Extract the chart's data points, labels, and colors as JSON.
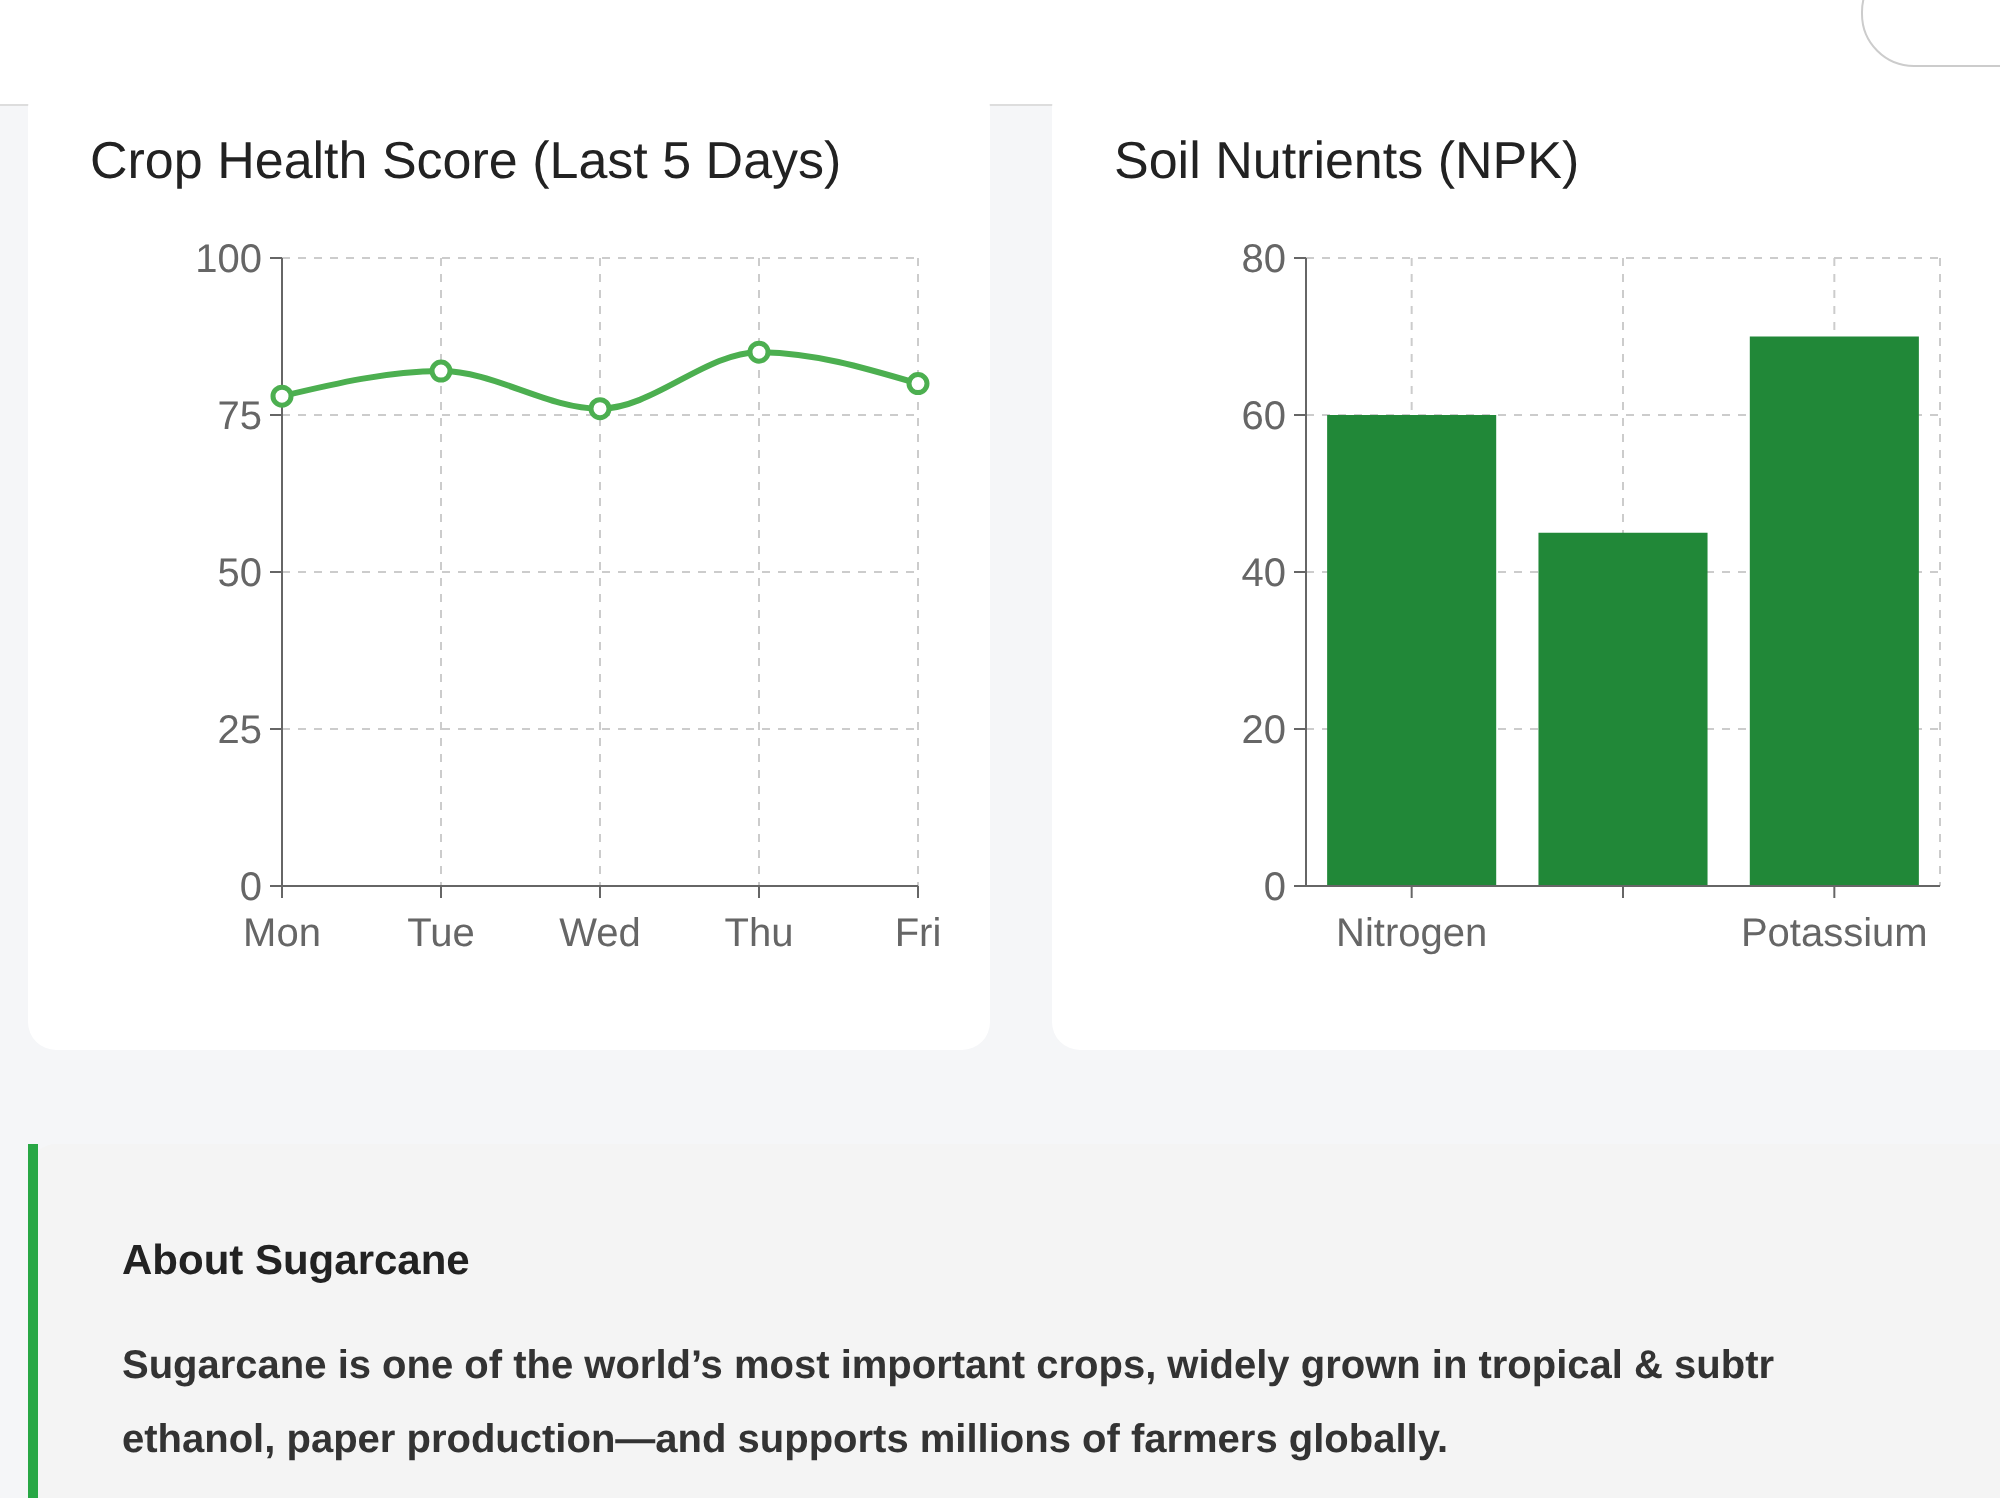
{
  "chart_data": [
    {
      "type": "line",
      "title": "Crop Health Score (Last 5 Days)",
      "categories": [
        "Mon",
        "Tue",
        "Wed",
        "Thu",
        "Fri"
      ],
      "values": [
        78,
        82,
        76,
        85,
        80
      ],
      "color": "#4caf50",
      "ylim": [
        0,
        100
      ],
      "yticks": [
        0,
        25,
        50,
        75,
        100
      ],
      "grid": true,
      "marker": "circle"
    },
    {
      "type": "bar",
      "title": "Soil Nutrients (NPK)",
      "categories": [
        "Nitrogen",
        null,
        "Potassium"
      ],
      "values": [
        60,
        45,
        70
      ],
      "color": "#218838",
      "ylim": [
        0,
        80
      ],
      "yticks": [
        0,
        20,
        40,
        60,
        80
      ],
      "grid": true
    },
    {
      "type": "other",
      "title": "About Sugarcane",
      "annotations": [
        "Sugarcane is one of the world’s most important crops, widely grown in tropical & subtr",
        "ethanol, paper production—and supports millions of farmers globally."
      ]
    }
  ]
}
